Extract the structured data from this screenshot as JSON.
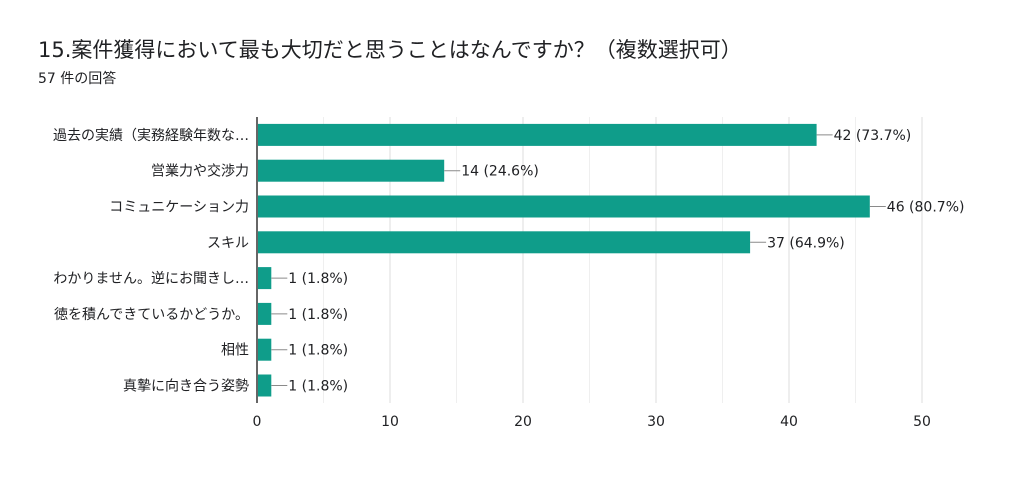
{
  "form": {
    "question": "15.案件獲得において最も大切だと思うことはなんですか？（複数選択可）",
    "response_count": "57 件の回答"
  },
  "chart_data": {
    "type": "bar",
    "orientation": "horizontal",
    "title": "15.案件獲得において最も大切だと思うことはなんですか？（複数選択可）",
    "subtitle": "57 件の回答",
    "categories": [
      "過去の実績（実務経験年数な…",
      "営業力や交渉力",
      "コミュニケーション力",
      "スキル",
      "わかりません。逆にお聞きし…",
      "徳を積んできているかどうか。",
      "相性",
      "真摯に向き合う姿勢"
    ],
    "values": [
      42,
      14,
      46,
      37,
      1,
      1,
      1,
      1
    ],
    "data_labels": [
      "42 (73.7%)",
      "14 (24.6%)",
      "46 (80.7%)",
      "37 (64.9%)",
      "1 (1.8%)",
      "1 (1.8%)",
      "1 (1.8%)",
      "1 (1.8%)"
    ],
    "xlim": [
      0,
      50
    ],
    "xticks": [
      0,
      10,
      20,
      30,
      40,
      50
    ],
    "xlabel": "",
    "ylabel": "",
    "grid": true,
    "colors": {
      "bar": "#0f9d8a",
      "grid": "#e6e6e6",
      "axis": "#333333",
      "leader": "#8a8a8a",
      "text": "#202124"
    }
  }
}
